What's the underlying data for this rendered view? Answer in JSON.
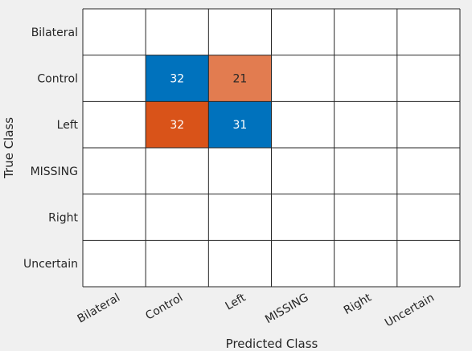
{
  "chart_data": {
    "type": "heatmap",
    "title": "",
    "xlabel": "Predicted Class",
    "ylabel": "True Class",
    "x_categories": [
      "Bilateral",
      "Control",
      "Left",
      "MISSING",
      "Right",
      "Uncertain"
    ],
    "y_categories": [
      "Bilateral",
      "Control",
      "Left",
      "MISSING",
      "Right",
      "Uncertain"
    ],
    "values": [
      [
        0,
        0,
        0,
        0,
        0,
        0
      ],
      [
        0,
        32,
        21,
        0,
        0,
        0
      ],
      [
        0,
        32,
        31,
        0,
        0,
        0
      ],
      [
        0,
        0,
        0,
        0,
        0,
        0
      ],
      [
        0,
        0,
        0,
        0,
        0,
        0
      ],
      [
        0,
        0,
        0,
        0,
        0,
        0
      ]
    ],
    "grid": true,
    "legend": "none"
  },
  "colors": {
    "background": "#f0f0f0",
    "cell_empty": "#ffffff",
    "grid_line": "#262626",
    "diagonal_strong": "#0072bd",
    "offdiagonal_strong": "#d95319",
    "offdiagonal_weak": "#e88d66",
    "text_light": "#ffffff",
    "text_dark": "#262626"
  }
}
